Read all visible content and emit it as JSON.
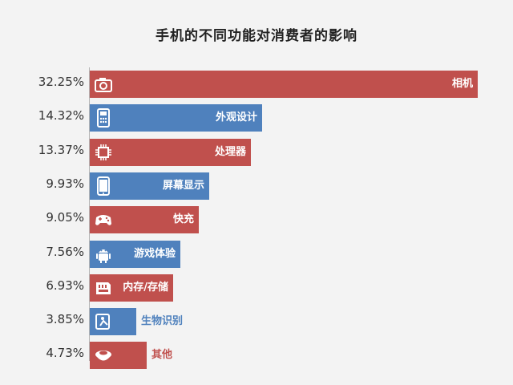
{
  "chart_data": {
    "type": "bar",
    "orientation": "horizontal",
    "title": "手机的不同功能对消费者的影响",
    "categories": [
      "相机",
      "外观设计",
      "处理器",
      "屏幕显示",
      "快充",
      "游戏体验",
      "内存/存储",
      "生物识别",
      "其他"
    ],
    "values": [
      32.25,
      14.32,
      13.37,
      9.93,
      9.05,
      7.56,
      6.93,
      3.85,
      4.73
    ],
    "value_labels": [
      "32.25%",
      "14.32%",
      "13.37%",
      "9.93%",
      "9.05%",
      "7.56%",
      "6.93%",
      "3.85%",
      "4.73%"
    ],
    "colors": [
      "#c0504d",
      "#4f81bd",
      "#c0504d",
      "#4f81bd",
      "#c0504d",
      "#4f81bd",
      "#c0504d",
      "#4f81bd",
      "#c0504d"
    ],
    "icons": [
      "camera-icon",
      "phone-keypad-icon",
      "chip-icon",
      "smartphone-icon",
      "gamepad-icon",
      "android-icon",
      "memory-card-icon",
      "fingerprint-icon",
      "bowl-icon"
    ],
    "xlim": [
      0,
      33
    ],
    "grid": false,
    "legend": "none"
  }
}
